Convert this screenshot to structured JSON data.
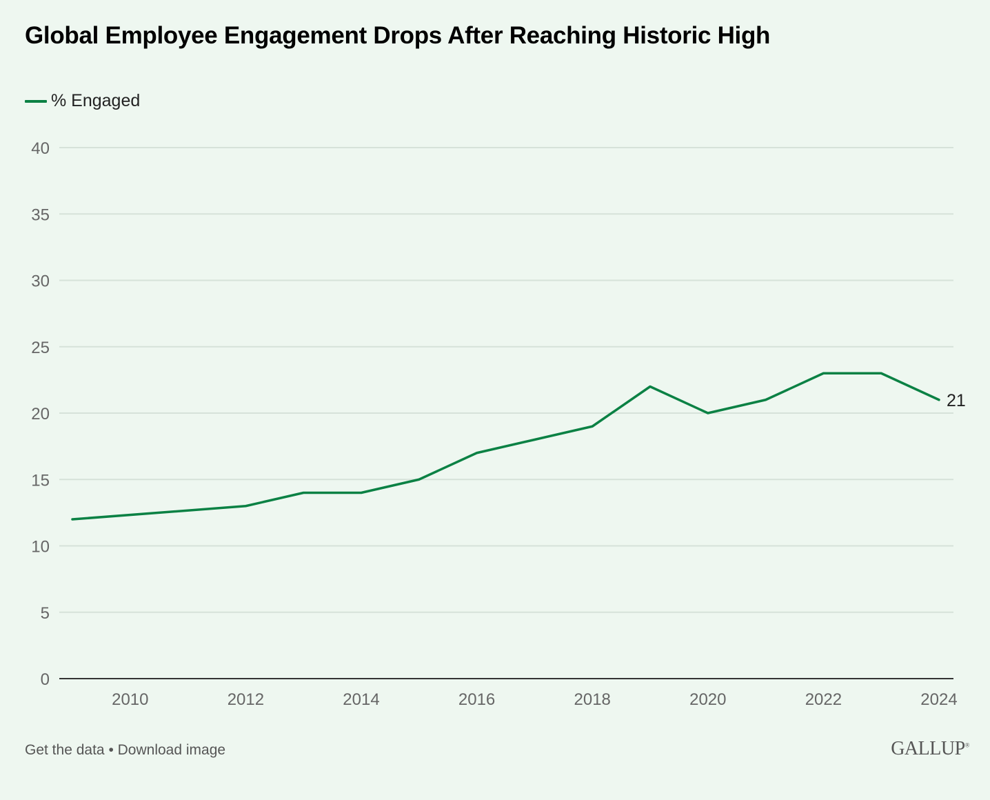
{
  "title": "Global Employee Engagement Drops After Reaching Historic High",
  "legend": {
    "label": "% Engaged",
    "color": "#0b8144"
  },
  "footer": {
    "get_data": "Get the data",
    "separator": "•",
    "download": "Download image"
  },
  "logo": {
    "text": "GALLUP",
    "mark": "®"
  },
  "chart_data": {
    "type": "line",
    "title": "Global Employee Engagement Drops After Reaching Historic High",
    "xlabel": "",
    "ylabel": "",
    "x": [
      2009,
      2012,
      2013,
      2014,
      2015,
      2016,
      2017,
      2018,
      2019,
      2020,
      2021,
      2022,
      2023,
      2024
    ],
    "series": [
      {
        "name": "% Engaged",
        "color": "#0b8144",
        "values": [
          12,
          13,
          14,
          14,
          15,
          17,
          18,
          19,
          22,
          20,
          21,
          23,
          23,
          21
        ]
      }
    ],
    "xlim": [
      2008.3,
      2024.2
    ],
    "ylim": [
      0,
      40
    ],
    "yticks": [
      0,
      5,
      10,
      15,
      20,
      25,
      30,
      35,
      40
    ],
    "xticks": [
      2010,
      2012,
      2014,
      2016,
      2018,
      2020,
      2022,
      2024
    ],
    "end_label": "21",
    "grid": true,
    "legend_position": "top-left"
  }
}
